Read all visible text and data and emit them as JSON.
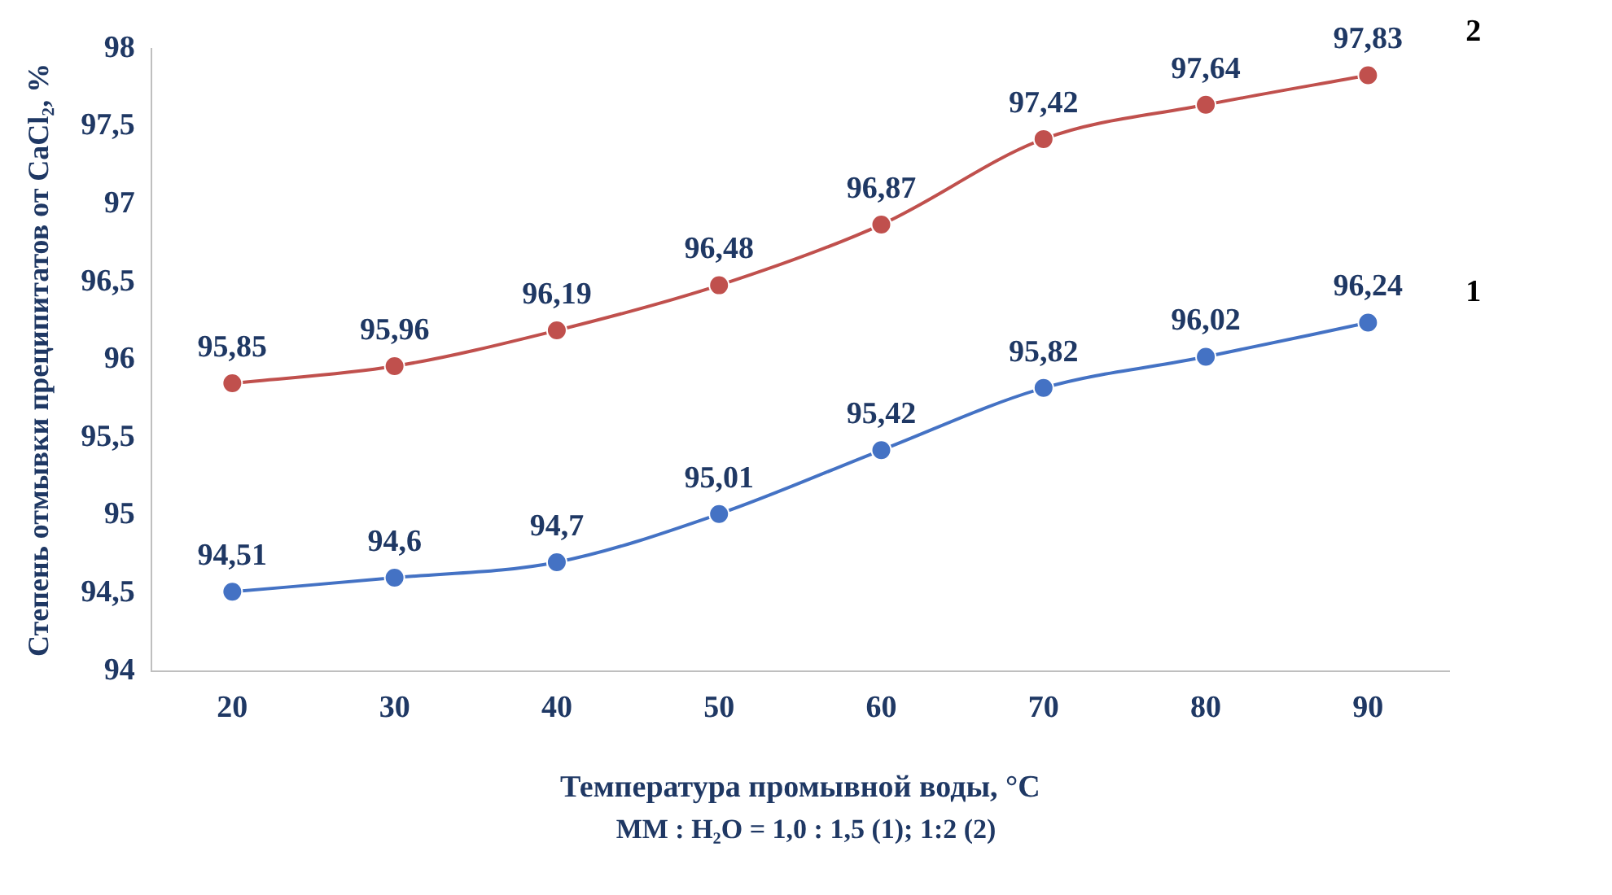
{
  "chart_data": {
    "type": "line",
    "xlabel": "Температура промывной воды, °C",
    "ylabel": "Степень отмывки преципитатов от CaCl₂, %",
    "annotations": [
      "MM : H₂O = 1,0 : 1,5 (1); 1:2 (2)"
    ],
    "categories": [
      "20",
      "30",
      "40",
      "50",
      "60",
      "70",
      "80",
      "90"
    ],
    "series": [
      {
        "name": "1",
        "color": "#4472c4",
        "values": [
          94.51,
          94.6,
          94.7,
          95.01,
          95.42,
          95.82,
          96.02,
          96.24
        ],
        "value_labels": [
          "94,51",
          "94,6",
          "94,7",
          "95,01",
          "95,42",
          "95,82",
          "96,02",
          "96,24"
        ]
      },
      {
        "name": "2",
        "color": "#c0504d",
        "values": [
          95.85,
          95.96,
          96.19,
          96.48,
          96.87,
          97.42,
          97.64,
          97.83
        ],
        "value_labels": [
          "95,85",
          "95,96",
          "96,19",
          "96,48",
          "96,87",
          "97,42",
          "97,64",
          "97,83"
        ]
      }
    ],
    "ylim": [
      94,
      98
    ],
    "yticks": [
      94,
      {
        "value": 94.5,
        "label": "94,5"
      },
      95,
      {
        "value": 95.5,
        "label": "95,5"
      },
      96,
      {
        "value": 96.5,
        "label": "96,5"
      },
      97,
      {
        "value": 97.5,
        "label": "97,5"
      },
      98
    ],
    "grid": false,
    "legend": false,
    "marker": "circle",
    "line_style": "solid"
  }
}
